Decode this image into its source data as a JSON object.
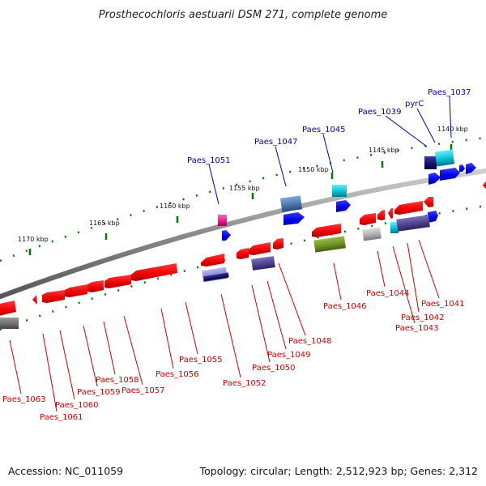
{
  "header": {
    "title": "Prosthecochloris aestuarii DSM 271, complete genome"
  },
  "footer": {
    "accession": "Accession: NC_011059",
    "stats": "Topology: circular; Length: 2,512,923 bp; Genes: 2,312"
  },
  "colors": {
    "forward_gene_label": "#0000aa",
    "reverse_gene_label": "#cc0000",
    "backbone": "#8a8a8a",
    "forward_cds": "#0000ff",
    "reverse_cds": "#ff0000",
    "tick": "#007700"
  },
  "scale_labels": [
    "1140 kbp",
    "1145 kbp",
    "1150 kbp",
    "1155 kbp",
    "1160 kbp",
    "1165 kbp",
    "1170 kbp"
  ],
  "forward_labels": [
    "Paes_1037",
    "pyrC",
    "Paes_1039",
    "Paes_1045",
    "Paes_1047",
    "Paes_1051"
  ],
  "reverse_labels": [
    "Paes_1041",
    "Paes_1042",
    "Paes_1043",
    "Paes_1044",
    "Paes_1046",
    "Paes_1048",
    "Paes_1049",
    "Paes_1050",
    "Paes_1052",
    "Paes_1055",
    "Paes_1056",
    "Paes_1057",
    "Paes_1058",
    "Paes_1059",
    "Paes_1060",
    "Paes_1061",
    "Paes_1063"
  ]
}
